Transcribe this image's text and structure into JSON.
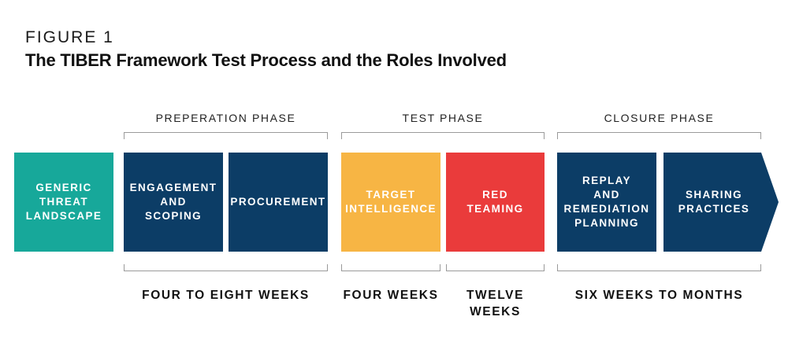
{
  "figure_label": "FIGURE 1",
  "title": "The TIBER Framework Test Process and the Roles Involved",
  "phases": {
    "preparation": "PREPERATION PHASE",
    "test": "TEST PHASE",
    "closure": "CLOSURE PHASE"
  },
  "steps": {
    "threat_landscape": "GENERIC\nTHREAT\nLANDSCAPE",
    "engagement": "ENGAGEMENT\nAND\nSCOPING",
    "procurement": "PROCUREMENT",
    "target_intel": "TARGET\nINTELLIGENCE",
    "red_teaming": "RED\nTEAMING",
    "replay": "REPLAY\nAND\nREMEDIATION\nPLANNING",
    "sharing": "SHARING\nPRACTICES"
  },
  "durations": {
    "preparation": "FOUR TO EIGHT WEEKS",
    "target_intel": "FOUR WEEKS",
    "red_teaming": "TWELVE\nWEEKS",
    "closure": "SIX WEEKS TO MONTHS"
  },
  "colors": {
    "teal": "#17a89a",
    "navy": "#0c3d66",
    "amber": "#f7b544",
    "red": "#ea3b3b",
    "bracket": "#9a9a9a"
  }
}
